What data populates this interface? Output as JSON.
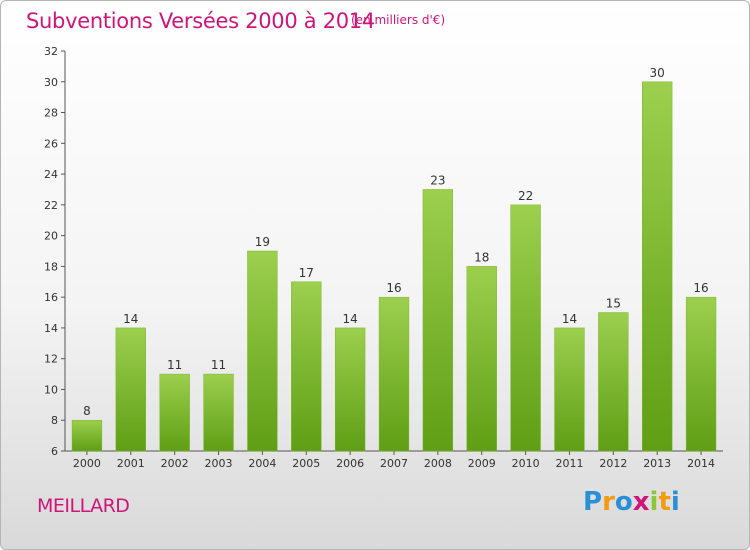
{
  "title": "Subventions Versées 2000 à 2014",
  "subtitle": "(en milliers d'€)",
  "place": "MEILLARD",
  "logo": {
    "letters": [
      "P",
      "r",
      "o",
      "x",
      "i",
      "t",
      "i"
    ],
    "colors": [
      "#2a8fd6",
      "#f39c12",
      "#2a8fd6",
      "#d0157a",
      "#8cc63f",
      "#f39c12",
      "#2a8fd6"
    ]
  },
  "colors": {
    "accent": "#d0157a",
    "bar_top": "#9ccf4e",
    "bar_bottom": "#5f9e15"
  },
  "chart_data": {
    "type": "bar",
    "categories": [
      "2000",
      "2001",
      "2002",
      "2003",
      "2004",
      "2005",
      "2006",
      "2007",
      "2008",
      "2009",
      "2010",
      "2011",
      "2012",
      "2013",
      "2014"
    ],
    "values": [
      8,
      14,
      11,
      11,
      19,
      17,
      14,
      16,
      23,
      18,
      22,
      14,
      15,
      30,
      16
    ],
    "ylim": [
      6,
      32
    ],
    "yticks": [
      6,
      8,
      10,
      12,
      14,
      16,
      18,
      20,
      22,
      24,
      26,
      28,
      30,
      32
    ],
    "grid": false
  }
}
